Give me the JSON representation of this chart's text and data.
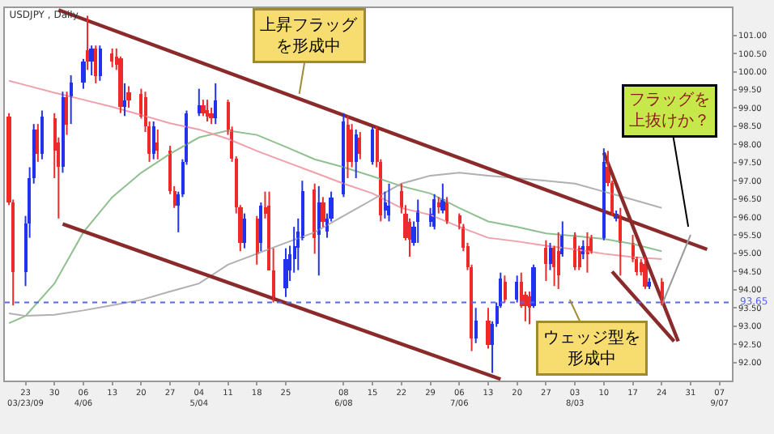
{
  "chart_data": {
    "type": "candlestick",
    "title": "USDJPY , Daily",
    "x": [
      "--03-19",
      "--03-20",
      "--03-23",
      "--03-24",
      "--03-25",
      "--03-26",
      "--03-27",
      "--03-30",
      "--03-31",
      "--04-01",
      "--04-02",
      "--04-03",
      "--04-06",
      "--04-07",
      "--04-08",
      "--04-09",
      "--04-10",
      "--04-13",
      "--04-14",
      "--04-15",
      "--04-16",
      "--04-17",
      "--04-20",
      "--04-21",
      "--04-22",
      "--04-23",
      "--04-24",
      "--04-27",
      "--04-28",
      "--04-29",
      "--04-30",
      "--05-01",
      "--05-04",
      "--05-05",
      "--05-06",
      "--05-07",
      "--05-08",
      "--05-11",
      "--05-12",
      "--05-13",
      "--05-14",
      "--05-15",
      "--05-18",
      "--05-19",
      "--05-20",
      "--05-21",
      "--05-22",
      "--05-25",
      "--05-26",
      "--05-27",
      "--05-28",
      "--05-29",
      "--06-01",
      "--06-02",
      "--06-03",
      "--06-04",
      "--06-05",
      "--06-08",
      "--06-09",
      "--06-10",
      "--06-11",
      "--06-12",
      "--06-15",
      "--06-16",
      "--06-17",
      "--06-18",
      "--06-19",
      "--06-22",
      "--06-23",
      "--06-24",
      "--06-25",
      "--06-26",
      "--06-29",
      "--06-30",
      "--07-01",
      "--07-02",
      "--07-03",
      "--07-06",
      "--07-07",
      "--07-08",
      "--07-09",
      "--07-10",
      "--07-13",
      "--07-14",
      "--07-15",
      "--07-16",
      "--07-17",
      "--07-20",
      "--07-21",
      "--07-22",
      "--07-23",
      "--07-24",
      "--07-27",
      "--07-28",
      "--07-29",
      "--07-30",
      "--07-31",
      "--08-03",
      "--08-04",
      "--08-05",
      "--08-06",
      "--08-07",
      "--08-10",
      "--08-11",
      "--08-12",
      "--08-13",
      "--08-14",
      "--08-17",
      "--08-18",
      "--08-19",
      "--08-20",
      "--08-21",
      "--08-24"
    ],
    "ohlc": [
      [
        98.78,
        98.86,
        96.33,
        96.4
      ],
      [
        96.4,
        96.48,
        93.57,
        94.47
      ],
      [
        94.47,
        96.03,
        94.1,
        95.81
      ],
      [
        95.81,
        97.37,
        95.43,
        97.07
      ],
      [
        97.07,
        98.56,
        96.92,
        98.41
      ],
      [
        98.41,
        98.56,
        97.52,
        97.74
      ],
      [
        97.74,
        98.93,
        97.59,
        98.78
      ],
      [
        98.71,
        98.86,
        97.07,
        97.82
      ],
      [
        98.04,
        98.19,
        95.96,
        97.37
      ],
      [
        97.37,
        99.45,
        97.22,
        99.3
      ],
      [
        99.3,
        99.45,
        98.26,
        98.56
      ],
      [
        99.3,
        99.9,
        98.56,
        99.68
      ],
      [
        99.68,
        100.35,
        99.53,
        100.27
      ],
      [
        100.57,
        101.54,
        100.05,
        100.27
      ],
      [
        100.27,
        100.72,
        99.9,
        100.64
      ],
      [
        100.64,
        100.72,
        99.68,
        99.9
      ],
      [
        99.9,
        100.72,
        99.75,
        100.64
      ],
      [
        100.49,
        100.64,
        100.12,
        100.27
      ],
      [
        100.42,
        100.64,
        100.05,
        100.2
      ],
      [
        100.35,
        100.42,
        98.86,
        99.01
      ],
      [
        99.01,
        99.68,
        98.78,
        99.23
      ],
      [
        99.45,
        99.6,
        99.01,
        99.23
      ],
      [
        99.38,
        99.53,
        98.71,
        98.78
      ],
      [
        99.3,
        99.45,
        98.34,
        98.49
      ],
      [
        98.49,
        98.63,
        97.52,
        97.74
      ],
      [
        97.74,
        98.63,
        97.59,
        98.49
      ],
      [
        98.04,
        98.41,
        97.59,
        97.82
      ],
      [
        97.82,
        97.96,
        96.63,
        96.7
      ],
      [
        96.7,
        96.85,
        96.25,
        96.33
      ],
      [
        96.33,
        96.7,
        95.58,
        96.63
      ],
      [
        96.63,
        97.59,
        96.55,
        97.52
      ],
      [
        97.52,
        98.93,
        97.44,
        98.86
      ],
      [
        98.86,
        99.53,
        98.78,
        99.08
      ],
      [
        99.08,
        99.23,
        98.78,
        98.86
      ],
      [
        98.93,
        99.23,
        98.63,
        98.78
      ],
      [
        98.86,
        99.01,
        98.56,
        98.71
      ],
      [
        98.71,
        99.68,
        98.56,
        99.23
      ],
      [
        99.15,
        99.23,
        98.26,
        98.41
      ],
      [
        98.41,
        98.49,
        97.52,
        97.59
      ],
      [
        97.59,
        97.67,
        96.1,
        96.25
      ],
      [
        96.25,
        96.33,
        95.06,
        95.29
      ],
      [
        95.29,
        96.1,
        95.14,
        95.96
      ],
      [
        95.96,
        96.03,
        94.69,
        94.99
      ],
      [
        95.29,
        96.4,
        95.06,
        96.33
      ],
      [
        96.25,
        96.7,
        95.96,
        96.1
      ],
      [
        96.33,
        96.7,
        94.54,
        94.54
      ],
      [
        94.54,
        95.14,
        93.65,
        93.72
      ],
      [
        94.02,
        95.14,
        93.8,
        94.84
      ],
      [
        94.54,
        95.21,
        94.24,
        94.99
      ],
      [
        94.84,
        95.73,
        94.47,
        95.21
      ],
      [
        95.14,
        95.96,
        94.54,
        95.58
      ],
      [
        95.43,
        97.0,
        95.36,
        96.7
      ],
      [
        96.77,
        96.92,
        94.99,
        95.43
      ],
      [
        95.51,
        96.85,
        94.39,
        96.4
      ],
      [
        96.4,
        96.55,
        95.73,
        95.88
      ],
      [
        95.58,
        96.1,
        95.43,
        95.96
      ],
      [
        95.96,
        96.7,
        95.88,
        96.55
      ],
      [
        96.63,
        98.86,
        96.55,
        98.63
      ],
      [
        98.56,
        98.78,
        97.07,
        97.52
      ],
      [
        98.41,
        98.56,
        97.37,
        97.52
      ],
      [
        97.52,
        98.41,
        97.07,
        98.26
      ],
      [
        98.19,
        98.34,
        97.59,
        97.74
      ],
      [
        97.52,
        98.49,
        97.44,
        98.41
      ],
      [
        98.41,
        98.49,
        97.37,
        97.52
      ],
      [
        97.52,
        97.59,
        95.88,
        96.03
      ],
      [
        96.18,
        96.7,
        95.96,
        96.4
      ],
      [
        96.03,
        96.92,
        95.88,
        96.33
      ],
      [
        96.7,
        96.92,
        96.1,
        96.25
      ],
      [
        96.1,
        96.33,
        95.36,
        95.43
      ],
      [
        95.88,
        95.96,
        94.91,
        95.36
      ],
      [
        95.29,
        95.88,
        95.21,
        95.73
      ],
      [
        95.88,
        96.48,
        95.29,
        96.18
      ],
      [
        95.88,
        96.25,
        95.73,
        96.1
      ],
      [
        95.73,
        96.63,
        95.66,
        96.48
      ],
      [
        96.4,
        96.55,
        96.1,
        96.25
      ],
      [
        96.18,
        96.92,
        96.1,
        96.48
      ],
      [
        96.4,
        96.55,
        95.81,
        95.88
      ],
      [
        96.03,
        96.1,
        95.66,
        95.81
      ],
      [
        95.73,
        95.81,
        95.06,
        95.14
      ],
      [
        95.21,
        95.29,
        94.54,
        94.62
      ],
      [
        94.62,
        94.69,
        92.31,
        92.68
      ],
      [
        92.68,
        93.5,
        92.53,
        93.13
      ],
      [
        93.13,
        93.5,
        92.38,
        92.46
      ],
      [
        92.46,
        93.13,
        91.71,
        93.05
      ],
      [
        93.05,
        93.65,
        92.98,
        93.57
      ],
      [
        93.57,
        94.47,
        93.5,
        94.32
      ],
      [
        94.24,
        94.39,
        93.65,
        93.72
      ],
      [
        93.72,
        94.39,
        93.65,
        94.24
      ],
      [
        94.24,
        94.47,
        93.5,
        93.57
      ],
      [
        93.87,
        93.95,
        93.13,
        93.57
      ],
      [
        93.8,
        93.95,
        93.05,
        93.5
      ],
      [
        93.57,
        94.69,
        93.5,
        94.62
      ],
      [
        95.14,
        95.36,
        94.24,
        94.69
      ],
      [
        94.69,
        95.29,
        94.54,
        95.14
      ],
      [
        95.14,
        95.21,
        94.1,
        94.62
      ],
      [
        95.06,
        95.58,
        94.02,
        94.39
      ],
      [
        94.99,
        95.88,
        94.91,
        95.51
      ],
      [
        95.51,
        95.58,
        94.54,
        94.62
      ],
      [
        95.14,
        95.21,
        94.54,
        94.62
      ],
      [
        94.99,
        95.36,
        94.84,
        95.21
      ],
      [
        95.21,
        95.58,
        94.47,
        94.99
      ],
      [
        95.43,
        95.51,
        94.99,
        95.06
      ],
      [
        95.43,
        97.89,
        95.36,
        97.52
      ],
      [
        97.37,
        97.82,
        96.85,
        96.92
      ],
      [
        96.92,
        97.0,
        96.03,
        96.1
      ],
      [
        95.96,
        96.18,
        95.88,
        96.1
      ],
      [
        96.03,
        96.25,
        94.39,
        95.29
      ],
      [
        95.29,
        95.51,
        94.76,
        94.84
      ],
      [
        94.84,
        94.91,
        94.39,
        94.47
      ],
      [
        94.76,
        94.84,
        94.39,
        94.47
      ],
      [
        94.69,
        94.91,
        94.02,
        94.1
      ],
      [
        94.1,
        94.32,
        94.02,
        94.24
      ],
      [
        94.24,
        94.32,
        93.57,
        93.65
      ]
    ],
    "colors": [
      "#ee2a2a",
      "#ee2a2a",
      "#2233ee",
      "#2233ee",
      "#2233ee",
      "#ee2a2a",
      "#2233ee",
      "#ee2a2a",
      "#ee2a2a",
      "#2233ee",
      "#ee2a2a",
      "#2233ee",
      "#2233ee",
      "#ee2a2a",
      "#2233ee",
      "#ee2a2a",
      "#2233ee",
      "#ee2a2a",
      "#ee2a2a",
      "#ee2a2a",
      "#2233ee",
      "#ee2a2a",
      "#ee2a2a",
      "#ee2a2a",
      "#ee2a2a",
      "#2233ee",
      "#ee2a2a",
      "#ee2a2a",
      "#ee2a2a",
      "#2233ee",
      "#2233ee",
      "#2233ee",
      "#2233ee",
      "#ee2a2a",
      "#ee2a2a",
      "#ee2a2a",
      "#2233ee",
      "#ee2a2a",
      "#ee2a2a",
      "#ee2a2a",
      "#ee2a2a",
      "#2233ee",
      "#ee2a2a",
      "#2233ee",
      "#ee2a2a",
      "#ee2a2a",
      "#ee2a2a",
      "#2233ee",
      "#2233ee",
      "#2233ee",
      "#2233ee",
      "#2233ee",
      "#ee2a2a",
      "#2233ee",
      "#ee2a2a",
      "#2233ee",
      "#2233ee",
      "#2233ee",
      "#ee2a2a",
      "#ee2a2a",
      "#2233ee",
      "#ee2a2a",
      "#2233ee",
      "#ee2a2a",
      "#ee2a2a",
      "#2233ee",
      "#2233ee",
      "#ee2a2a",
      "#ee2a2a",
      "#ee2a2a",
      "#2233ee",
      "#2233ee",
      "#2233ee",
      "#2233ee",
      "#ee2a2a",
      "#2233ee",
      "#ee2a2a",
      "#ee2a2a",
      "#ee2a2a",
      "#ee2a2a",
      "#ee2a2a",
      "#2233ee",
      "#ee2a2a",
      "#2233ee",
      "#2233ee",
      "#2233ee",
      "#ee2a2a",
      "#2233ee",
      "#ee2a2a",
      "#ee2a2a",
      "#ee2a2a",
      "#2233ee",
      "#ee2a2a",
      "#2233ee",
      "#ee2a2a",
      "#ee2a2a",
      "#2233ee",
      "#ee2a2a",
      "#ee2a2a",
      "#2233ee",
      "#ee2a2a",
      "#ee2a2a",
      "#2233ee",
      "#ee2a2a",
      "#ee2a2a",
      "#2233ee",
      "#ee2a2a",
      "#ee2a2a",
      "#ee2a2a",
      "#ee2a2a",
      "#ee2a2a",
      "#2233ee",
      "#ee2a2a"
    ],
    "series": [
      {
        "type": "line",
        "color": "#8fc08f",
        "x": [
          "--03-19",
          "--03-23",
          "--03-30",
          "--04-06",
          "--04-13",
          "--04-20",
          "--04-27",
          "--05-04",
          "--05-11",
          "--05-18",
          "--05-25",
          "--06-01",
          "--06-08",
          "--06-15",
          "--06-22",
          "--06-29",
          "--07-06",
          "--07-13",
          "--07-20",
          "--07-27",
          "--08-03",
          "--08-10",
          "--08-17",
          "--08-24"
        ],
        "values": [
          93.08,
          93.28,
          94.17,
          95.58,
          96.55,
          97.22,
          97.74,
          98.19,
          98.38,
          98.26,
          97.93,
          97.59,
          97.37,
          97.12,
          96.85,
          96.65,
          96.25,
          95.88,
          95.73,
          95.55,
          95.48,
          95.4,
          95.26,
          95.06
        ]
      },
      {
        "type": "line",
        "color": "#f0a0a8",
        "x": [
          "--03-19",
          "--03-23",
          "--03-30",
          "--04-06",
          "--04-13",
          "--04-20",
          "--04-27",
          "--05-04",
          "--05-11",
          "--05-18",
          "--05-25",
          "--06-01",
          "--06-08",
          "--06-15",
          "--06-22",
          "--06-29",
          "--07-06",
          "--07-13",
          "--07-20",
          "--07-27",
          "--08-03",
          "--08-10",
          "--08-17",
          "--08-24"
        ],
        "values": [
          99.75,
          99.63,
          99.42,
          99.23,
          99.03,
          98.81,
          98.58,
          98.41,
          98.15,
          97.82,
          97.52,
          97.22,
          96.92,
          96.65,
          96.25,
          96.06,
          95.73,
          95.43,
          95.33,
          95.21,
          95.11,
          94.99,
          94.9,
          94.84
        ]
      },
      {
        "type": "line",
        "color": "#b0b0b0",
        "x": [
          "--03-19",
          "--03-23",
          "--03-30",
          "--04-06",
          "--04-13",
          "--04-20",
          "--04-27",
          "--05-04",
          "--05-11",
          "--05-18",
          "--05-25",
          "--06-01",
          "--06-08",
          "--06-15",
          "--06-22",
          "--06-29",
          "--07-06",
          "--07-13",
          "--07-20",
          "--07-27",
          "--08-03",
          "--08-10",
          "--08-17",
          "--08-24"
        ],
        "values": [
          93.35,
          93.28,
          93.31,
          93.43,
          93.57,
          93.72,
          93.95,
          94.17,
          94.69,
          94.99,
          95.29,
          95.58,
          96.03,
          96.48,
          96.92,
          97.14,
          97.22,
          97.14,
          97.07,
          97.0,
          96.92,
          96.7,
          96.48,
          96.25
        ]
      },
      {
        "type": "line",
        "color": "#8b2a2a",
        "x": [
          "--03-31",
          "--09-04"
        ],
        "values": [
          101.7,
          95.11
        ]
      },
      {
        "type": "line",
        "color": "#8b2a2a",
        "x": [
          "--04-01",
          "--07-16"
        ],
        "values": [
          95.81,
          91.54
        ]
      },
      {
        "type": "line",
        "color": "#8b2a2a",
        "x": [
          "--08-10",
          "--08-28"
        ],
        "values": [
          97.77,
          92.58
        ]
      },
      {
        "type": "line",
        "color": "#8b2a2a",
        "x": [
          "--08-12",
          "--08-27"
        ],
        "values": [
          94.5,
          92.58
        ]
      },
      {
        "type": "line",
        "color": "#999999",
        "x": [
          "--08-24",
          "--08-31"
        ],
        "values": [
          93.57,
          95.51
        ]
      }
    ],
    "xlim": [
      "--03-18",
      "--09-10"
    ],
    "xticks": [
      {
        "value": "--03-23",
        "label": "23\n03/23/09"
      },
      {
        "value": "--03-30",
        "label": "30"
      },
      {
        "value": "--04-06",
        "label": "06\n4/06"
      },
      {
        "value": "--04-13",
        "label": "13"
      },
      {
        "value": "--04-20",
        "label": "20"
      },
      {
        "value": "--04-27",
        "label": "27"
      },
      {
        "value": "--05-04",
        "label": "04\n5/04"
      },
      {
        "value": "--05-11",
        "label": "11"
      },
      {
        "value": "--05-18",
        "label": "18"
      },
      {
        "value": "--05-25",
        "label": "25"
      },
      {
        "value": "--06-08",
        "label": "08\n6/08"
      },
      {
        "value": "--06-15",
        "label": "15"
      },
      {
        "value": "--06-22",
        "label": "22"
      },
      {
        "value": "--06-29",
        "label": "29"
      },
      {
        "value": "--07-06",
        "label": "06\n7/06"
      },
      {
        "value": "--07-13",
        "label": "13"
      },
      {
        "value": "--07-20",
        "label": "20"
      },
      {
        "value": "--07-27",
        "label": "27"
      },
      {
        "value": "--08-03",
        "label": "03\n8/03"
      },
      {
        "value": "--08-10",
        "label": "10"
      },
      {
        "value": "--08-17",
        "label": "17"
      },
      {
        "value": "--08-24",
        "label": "24"
      },
      {
        "value": "--08-31",
        "label": "31"
      },
      {
        "value": "--09-07",
        "label": "07\n9/07"
      }
    ],
    "ylim": [
      91.5,
      101.75
    ],
    "yticks": [
      {
        "value": 92,
        "label": "92.00"
      },
      {
        "value": 92.5,
        "label": "92.50"
      },
      {
        "value": 93,
        "label": "93.00"
      },
      {
        "value": 93.5,
        "label": "93.50"
      },
      {
        "value": 94,
        "label": "94.00"
      },
      {
        "value": 94.5,
        "label": "94.50"
      },
      {
        "value": 95,
        "label": "95.00"
      },
      {
        "value": 95.5,
        "label": "95.50"
      },
      {
        "value": 96,
        "label": "96.00"
      },
      {
        "value": 96.5,
        "label": "96.50"
      },
      {
        "value": 97,
        "label": "97.00"
      },
      {
        "value": 97.5,
        "label": "97.50"
      },
      {
        "value": 98,
        "label": "98.00"
      },
      {
        "value": 98.5,
        "label": "98.50"
      },
      {
        "value": 99,
        "label": "99.00"
      },
      {
        "value": 99.5,
        "label": "99.50"
      },
      {
        "value": 100,
        "label": "100.00"
      },
      {
        "value": 100.5,
        "label": "100.50"
      },
      {
        "value": 101,
        "label": "101.00"
      }
    ],
    "ref_lines": [
      {
        "axis": "y",
        "value": 93.65,
        "label": "93.65",
        "color": "#5566ff",
        "line_style": "dotted"
      }
    ],
    "annotations": [
      "上昇フラッグを形成中",
      "フラッグを上抜けか？",
      "ウェッジ型を形成中"
    ]
  }
}
